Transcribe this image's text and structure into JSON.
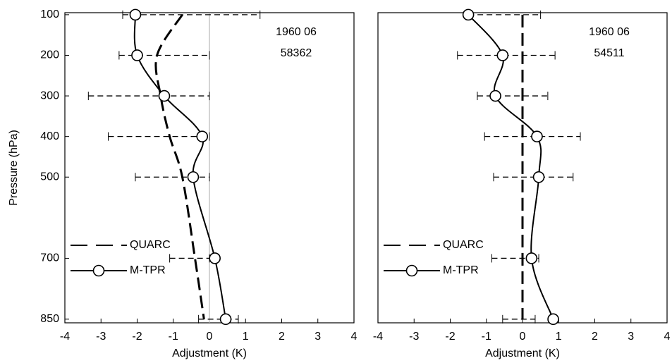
{
  "chart_data": [
    {
      "type": "line",
      "xlabel": "Adjustment (K)",
      "ylabel": "Pressure (hPa)",
      "xlim": [
        -4,
        4
      ],
      "xticks": [
        -4,
        -3,
        -2,
        -1,
        0,
        1,
        2,
        3,
        4
      ],
      "ylim": [
        95,
        859
      ],
      "y_inverted": true,
      "yticks": [
        100,
        200,
        300,
        400,
        500,
        700,
        850
      ],
      "y": [
        100,
        200,
        300,
        400,
        500,
        700,
        850
      ],
      "zero_line": true,
      "legend": "lower left",
      "annotations": [
        "1960 06",
        "58362"
      ],
      "series": [
        {
          "name": "QUARC",
          "color": "#000000",
          "style": "dashed",
          "values": [
            -0.75,
            -1.45,
            -1.35,
            -1.1,
            -0.75,
            -0.4,
            -0.15
          ]
        },
        {
          "name": "M-TPR",
          "color": "#000000",
          "style": "solid",
          "marker": "circle",
          "values": [
            -2.05,
            -2.0,
            -1.25,
            -0.2,
            -0.45,
            0.15,
            0.45
          ],
          "x_low": [
            -2.4,
            -2.5,
            -3.35,
            -2.8,
            -2.05,
            -1.1,
            -0.3
          ],
          "x_high": [
            1.4,
            0,
            0,
            0,
            0,
            0,
            0.8
          ]
        }
      ]
    },
    {
      "type": "line",
      "xlabel": "Adjustment (K)",
      "xlim": [
        -4,
        4
      ],
      "xticks": [
        -4,
        -3,
        -2,
        -1,
        0,
        1,
        2,
        3,
        4
      ],
      "ylim": [
        95,
        859
      ],
      "y_inverted": true,
      "y": [
        100,
        200,
        300,
        400,
        500,
        700,
        850
      ],
      "zero_line": false,
      "legend": "lower left",
      "annotations": [
        "1960 06",
        "54511"
      ],
      "series": [
        {
          "name": "QUARC",
          "color": "#000000",
          "style": "dashed",
          "values": [
            0,
            0,
            0,
            0,
            0,
            0,
            0
          ]
        },
        {
          "name": "M-TPR",
          "color": "#000000",
          "style": "solid",
          "marker": "circle",
          "values": [
            -1.5,
            -0.55,
            -0.75,
            0.4,
            0.45,
            0.25,
            0.85
          ],
          "x_low": [
            -1.5,
            -1.8,
            -1.25,
            -1.05,
            -0.8,
            -0.85,
            -0.55
          ],
          "x_high": [
            0.5,
            0.9,
            0.7,
            1.6,
            1.4,
            0.45,
            0.35
          ]
        }
      ]
    }
  ]
}
